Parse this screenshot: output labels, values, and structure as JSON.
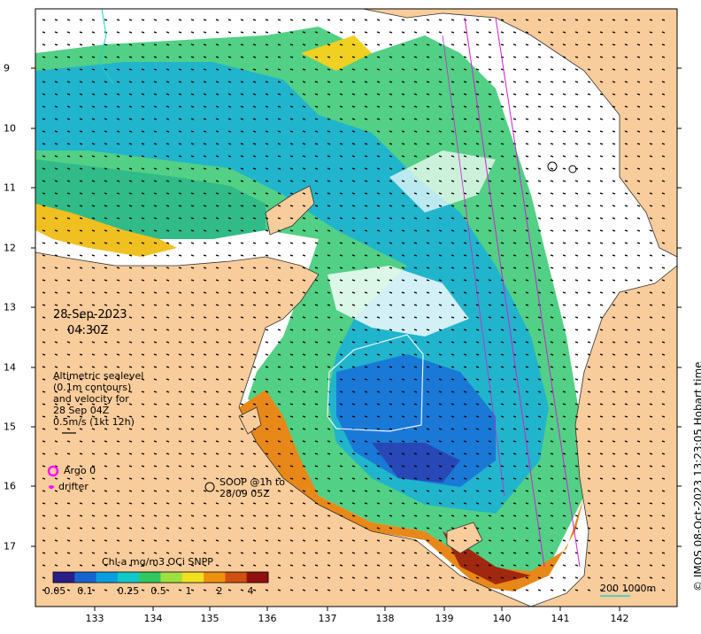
{
  "map": {
    "date": "28-Sep-2023",
    "time": "04:30Z",
    "credit": "© IMOS 08-Oct-2023 13:23:05 Hobart time",
    "lon_ticks": [
      "133",
      "134",
      "135",
      "136",
      "137",
      "138",
      "139",
      "140",
      "141",
      "142"
    ],
    "lat_ticks": [
      "9",
      "10",
      "11",
      "12",
      "13",
      "14",
      "15",
      "16",
      "17"
    ],
    "altimetry_label": [
      "Altimetric sealevel",
      "(0.1m contours)",
      "and velocity for",
      "28 Sep 04Z",
      "0.5m/s (1kt 12h)"
    ],
    "argo_label": "Argo 0",
    "drifter_label": "drifter",
    "soop_label": [
      "SOOP @1h to",
      "28/09 05Z"
    ],
    "scale_label": "200  1000m",
    "colorbar": {
      "title": "Chl-a mg/m3 OCi SNPP",
      "ticks": [
        "0.05",
        "0.1",
        "0.25",
        "0.5",
        "1",
        "2",
        "4"
      ],
      "colors": [
        "#2a1e8a",
        "#1565d0",
        "#0a9ee0",
        "#10c8c8",
        "#30c860",
        "#9ee040",
        "#f0e020",
        "#f09010",
        "#d05010",
        "#901010"
      ]
    },
    "colors": {
      "land": "#f9cc9b",
      "track": "#d020d0",
      "argo": "#ff10ff"
    }
  }
}
